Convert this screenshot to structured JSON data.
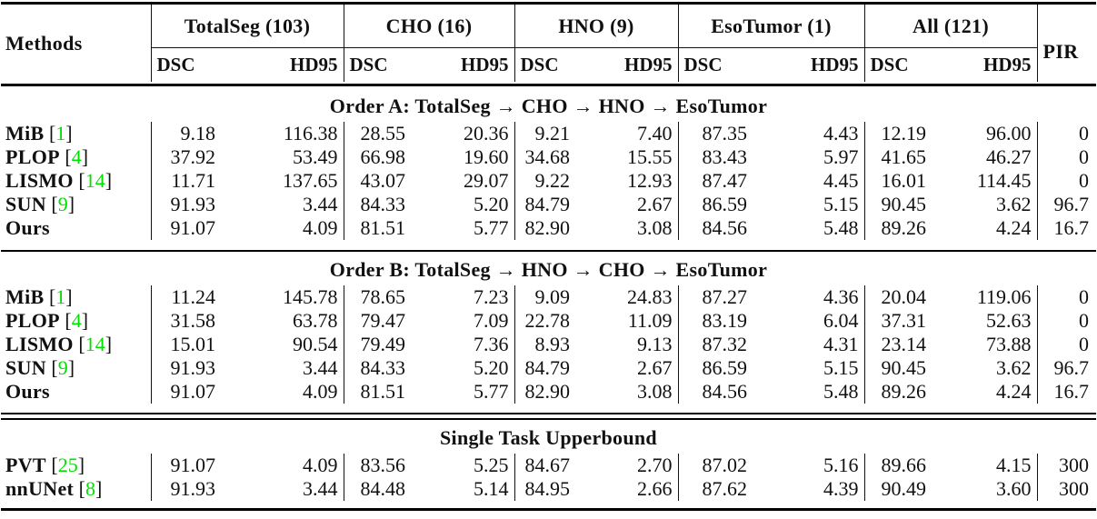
{
  "header": {
    "methods": "Methods",
    "pir": "PIR",
    "groups": [
      "TotalSeg (103)",
      "CHO (16)",
      "HNO (9)",
      "EsoTumor (1)",
      "All (121)"
    ],
    "metrics": [
      "DSC",
      "HD95"
    ]
  },
  "brackets": {
    "open": "[",
    "close": "]"
  },
  "colors": {
    "citation": "#00E000",
    "text": "#111111",
    "rule": "#000000"
  },
  "sections": [
    {
      "title": "Order A: TotalSeg → CHO → HNO → EsoTumor",
      "rows": [
        {
          "method": "MiB",
          "cite": "1",
          "values": [
            "9.18",
            "116.38",
            "28.55",
            "20.36",
            "9.21",
            "7.40",
            "87.35",
            "4.43",
            "12.19",
            "96.00",
            "0"
          ]
        },
        {
          "method": "PLOP",
          "cite": "4",
          "values": [
            "37.92",
            "53.49",
            "66.98",
            "19.60",
            "34.68",
            "15.55",
            "83.43",
            "5.97",
            "41.65",
            "46.27",
            "0"
          ]
        },
        {
          "method": "LISMO",
          "cite": "14",
          "values": [
            "11.71",
            "137.65",
            "43.07",
            "29.07",
            "9.22",
            "12.93",
            "87.47",
            "4.45",
            "16.01",
            "114.45",
            "0"
          ]
        },
        {
          "method": "SUN",
          "cite": "9",
          "values": [
            "91.93",
            "3.44",
            "84.33",
            "5.20",
            "84.79",
            "2.67",
            "86.59",
            "5.15",
            "90.45",
            "3.62",
            "96.7"
          ]
        },
        {
          "method": "Ours",
          "cite": "",
          "values": [
            "91.07",
            "4.09",
            "81.51",
            "5.77",
            "82.90",
            "3.08",
            "84.56",
            "5.48",
            "89.26",
            "4.24",
            "16.7"
          ]
        }
      ]
    },
    {
      "title": "Order B: TotalSeg → HNO → CHO → EsoTumor",
      "rows": [
        {
          "method": "MiB",
          "cite": "1",
          "values": [
            "11.24",
            "145.78",
            "78.65",
            "7.23",
            "9.09",
            "24.83",
            "87.27",
            "4.36",
            "20.04",
            "119.06",
            "0"
          ]
        },
        {
          "method": "PLOP",
          "cite": "4",
          "values": [
            "31.58",
            "63.78",
            "79.47",
            "7.09",
            "22.78",
            "11.09",
            "83.19",
            "6.04",
            "37.31",
            "52.63",
            "0"
          ]
        },
        {
          "method": "LISMO",
          "cite": "14",
          "values": [
            "15.01",
            "90.54",
            "79.49",
            "7.36",
            "8.93",
            "9.13",
            "87.32",
            "4.31",
            "23.14",
            "73.88",
            "0"
          ]
        },
        {
          "method": "SUN",
          "cite": "9",
          "values": [
            "91.93",
            "3.44",
            "84.33",
            "5.20",
            "84.79",
            "2.67",
            "86.59",
            "5.15",
            "90.45",
            "3.62",
            "96.7"
          ]
        },
        {
          "method": "Ours",
          "cite": "",
          "values": [
            "91.07",
            "4.09",
            "81.51",
            "5.77",
            "82.90",
            "3.08",
            "84.56",
            "5.48",
            "89.26",
            "4.24",
            "16.7"
          ]
        }
      ]
    },
    {
      "title": "Single Task Upperbound",
      "rows": [
        {
          "method": "PVT",
          "cite": "25",
          "values": [
            "91.07",
            "4.09",
            "83.56",
            "5.25",
            "84.67",
            "2.70",
            "87.02",
            "5.16",
            "89.66",
            "4.15",
            "300"
          ]
        },
        {
          "method": "nnUNet",
          "cite": "8",
          "values": [
            "91.93",
            "3.44",
            "84.48",
            "5.14",
            "84.95",
            "2.66",
            "87.62",
            "4.39",
            "90.49",
            "3.60",
            "300"
          ]
        }
      ]
    }
  ]
}
